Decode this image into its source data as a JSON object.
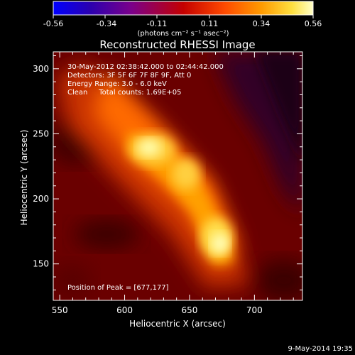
{
  "colorbar": {
    "ticks": [
      "-0.56",
      "-0.34",
      "-0.11",
      "0.11",
      "0.34",
      "0.56"
    ],
    "range": [
      -0.56,
      0.56
    ],
    "units_text": "(photons cm⁻² s⁻¹ asec⁻²)"
  },
  "header": {
    "title": "Reconstructed RHESSI Image"
  },
  "annotations": {
    "time_range": "30-May-2012 02:38:42.000 to 02:44:42.000",
    "detectors": "Detectors: 3F 5F 6F 7F 8F 9F, Att 0",
    "energy": "Energy Range: 3.0 - 6.0 keV",
    "clean": "Clean     Total counts: 1.69E+05",
    "peak": "Position of Peak = [677,177]"
  },
  "footer": {
    "date": "9-May-2014 19:35"
  },
  "chart_data": {
    "type": "heatmap",
    "title": "Reconstructed RHESSI Image",
    "xlabel": "Heliocentric X (arcsec)",
    "ylabel": "Heliocentric Y (arcsec)",
    "xlim": [
      545,
      737
    ],
    "ylim": [
      122,
      313
    ],
    "x_ticks": [
      550,
      600,
      650,
      700
    ],
    "y_ticks": [
      150,
      200,
      250,
      300
    ],
    "peak": [
      677,
      177
    ],
    "colorscale_range": [
      -0.56,
      0.56
    ],
    "colors": {
      "colorbar_stops": [
        "#0000ff",
        "#2a00a8",
        "#7a0090",
        "#c80000",
        "#ff5a00",
        "#ffb000",
        "#ffff80",
        "#ffffff"
      ]
    }
  }
}
